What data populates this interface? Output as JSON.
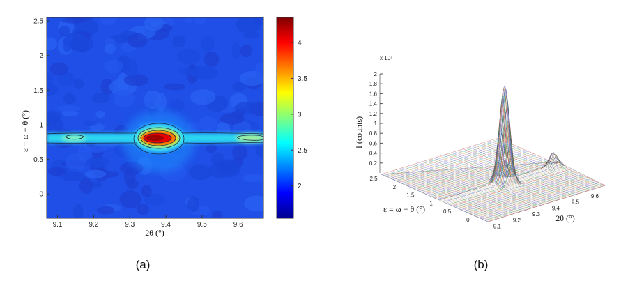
{
  "figure": {
    "panel_a_label": "(a)",
    "panel_b_label": "(b)"
  },
  "chart_data": [
    {
      "type": "heatmap",
      "panel": "(a)",
      "xlabel": "2θ (°)",
      "ylabel": "ε = ω − θ (°)",
      "xlim": [
        9.07,
        9.67
      ],
      "ylim": [
        -0.35,
        2.55
      ],
      "xticks": [
        "9.1",
        "9.2",
        "9.3",
        "9.4",
        "9.5",
        "9.6"
      ],
      "yticks": [
        "0",
        "0.5",
        "1",
        "1.5",
        "2",
        "2.5"
      ],
      "streak_epsilon": 0.84,
      "peak": {
        "two_theta": 9.38,
        "epsilon": 0.84
      },
      "side_spots": [
        {
          "two_theta": 9.16,
          "epsilon": 0.84
        },
        {
          "two_theta": 9.63,
          "epsilon": 0.84
        }
      ],
      "colorbar": {
        "range": [
          1.55,
          4.35
        ],
        "ticks": [
          "2",
          "2.5",
          "3",
          "3.5",
          "4"
        ],
        "colormap": "jet"
      },
      "grid": false
    },
    {
      "type": "surface",
      "panel": "(b)",
      "zlabel": "I (counts)",
      "xlabel": "2θ (°)",
      "ylabel": "ε = ω − θ (°)",
      "z_exponent_label": "x 10⁴",
      "zticks": [
        "0.2",
        "0.4",
        "0.6",
        "0.8",
        "1",
        "1.2",
        "1.4",
        "1.6",
        "1.8",
        "2"
      ],
      "xticks": [
        "9.1",
        "9.2",
        "9.3",
        "9.4",
        "9.5",
        "9.6"
      ],
      "yticks": [
        "0",
        "0.5",
        "1",
        "1.5",
        "2",
        "2.5"
      ],
      "zlim": [
        0,
        20000
      ],
      "peak": {
        "two_theta": 9.38,
        "epsilon": 0.84,
        "intensity": 19000
      },
      "secondary_peak": {
        "two_theta": 9.63,
        "epsilon": 0.84,
        "intensity": 2500
      }
    }
  ]
}
